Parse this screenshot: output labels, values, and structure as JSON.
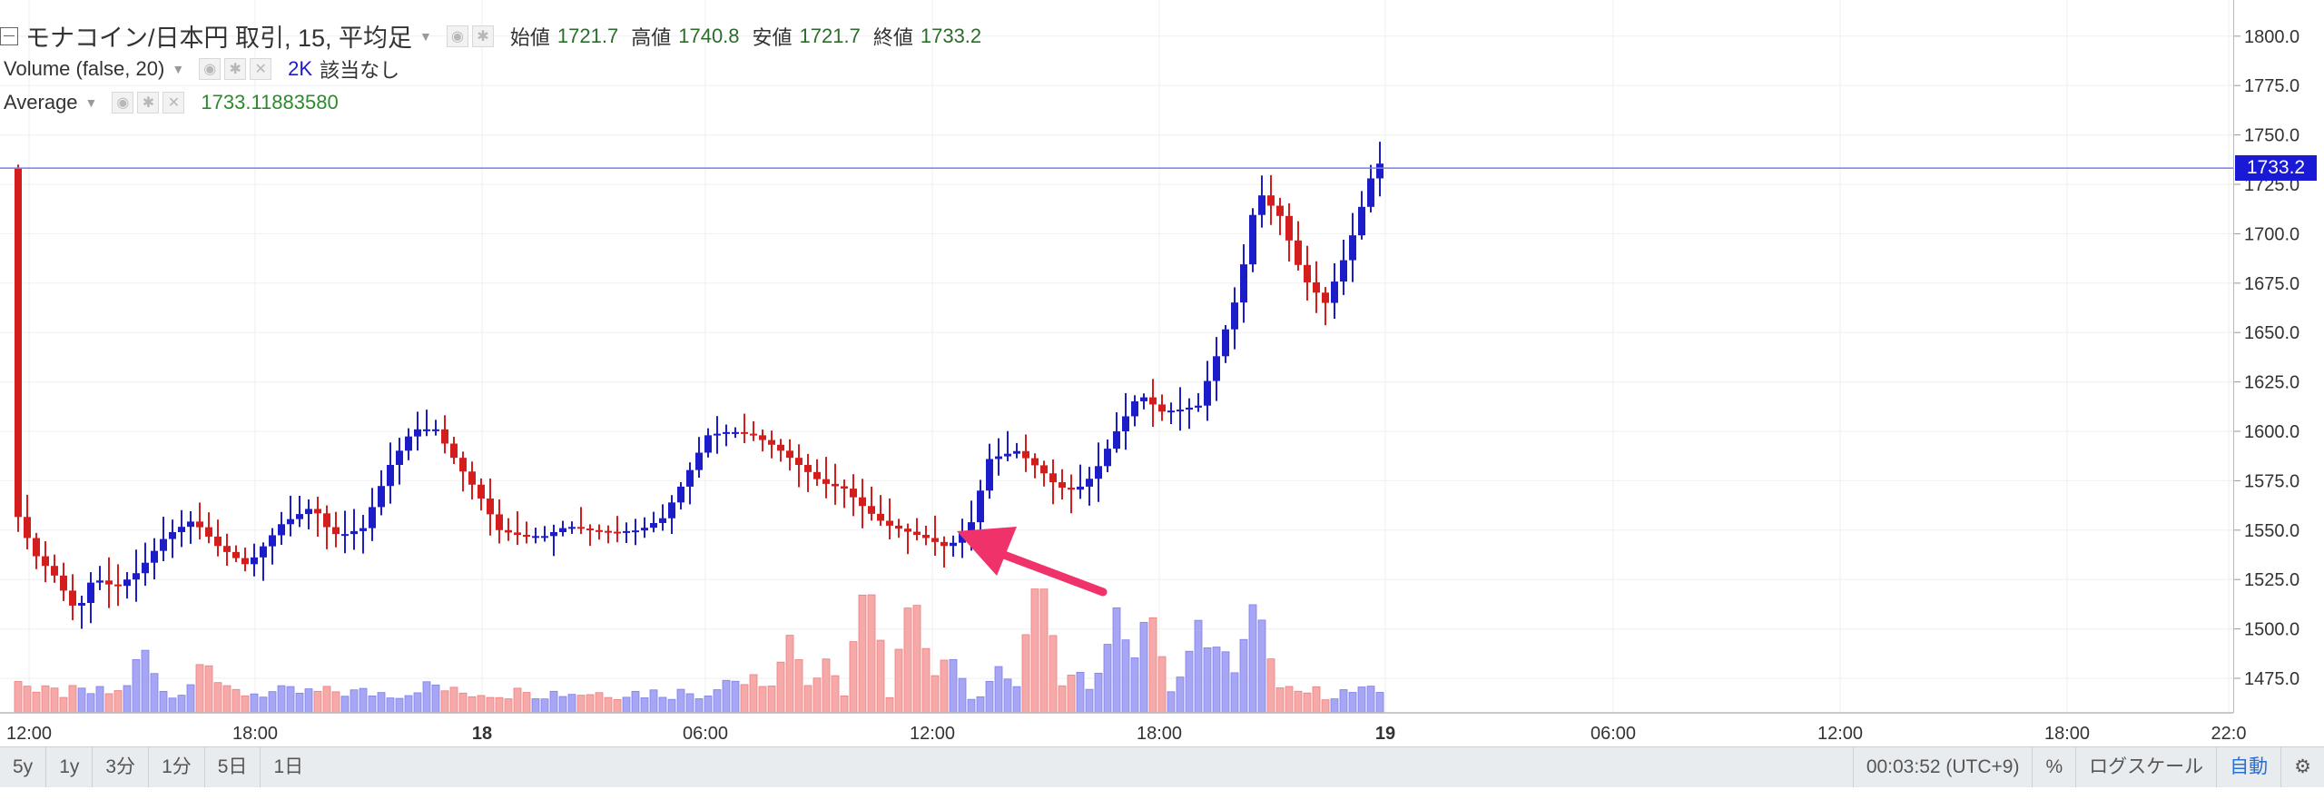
{
  "legend": {
    "symbol": "モナコイン/日本円 取引, 15, 平均足",
    "open_label": "始値",
    "open": "1721.7",
    "high_label": "高値",
    "high": "1740.8",
    "low_label": "安値",
    "low": "1721.7",
    "close_label": "終値",
    "close": "1733.2",
    "volume_name": "Volume (false, 20)",
    "volume_value": "2K",
    "volume_na": "該当なし",
    "average_name": "Average",
    "average_value": "1733.11883580"
  },
  "price_badge": "1733.2",
  "toolbar": {
    "ranges": [
      "5y",
      "1y",
      "3分",
      "1分",
      "5日",
      "1日"
    ],
    "clock": "00:03:52 (UTC+9)",
    "percent": "%",
    "log_scale": "ログスケール",
    "auto": "自動"
  },
  "colors": {
    "up": "#1c1cc8",
    "down": "#d41d1d",
    "vol_up": "#a6a6f5",
    "vol_down": "#f6a9a9",
    "arrow": "#f0326a",
    "last_price_line": "#7b7bea"
  },
  "chart_data": {
    "type": "candlestick",
    "y_ticks": [
      "1475.0",
      "1500.0",
      "1525.0",
      "1550.0",
      "1575.0",
      "1600.0",
      "1625.0",
      "1650.0",
      "1675.0",
      "1700.0",
      "1725.0",
      "1750.0",
      "1775.0",
      "1800.0"
    ],
    "x_ticks": [
      "12:00",
      "18:00",
      "18",
      "06:00",
      "12:00",
      "18:00",
      "19",
      "06:00",
      "12:00",
      "18:00",
      "22:0"
    ],
    "ylim": [
      1463,
      1806
    ],
    "last_price": 1733.2,
    "segments": [
      [
        0,
        1562
      ],
      [
        9,
        1538
      ],
      [
        18,
        1527
      ],
      [
        28,
        1508
      ],
      [
        35,
        1526
      ],
      [
        45,
        1521
      ],
      [
        55,
        1529
      ],
      [
        67,
        1547
      ],
      [
        79,
        1555
      ],
      [
        90,
        1542
      ],
      [
        103,
        1532
      ],
      [
        118,
        1553
      ],
      [
        132,
        1562
      ],
      [
        140,
        1548
      ],
      [
        146,
        1548
      ],
      [
        154,
        1551
      ],
      [
        166,
        1583
      ],
      [
        176,
        1601
      ],
      [
        186,
        1601
      ],
      [
        196,
        1583
      ],
      [
        205,
        1568
      ],
      [
        214,
        1550
      ],
      [
        224,
        1547
      ],
      [
        234,
        1547
      ],
      [
        244,
        1552
      ],
      [
        254,
        1550
      ],
      [
        264,
        1549
      ],
      [
        276,
        1550
      ],
      [
        286,
        1556
      ],
      [
        296,
        1576
      ],
      [
        306,
        1598
      ],
      [
        316,
        1600
      ],
      [
        326,
        1598
      ],
      [
        336,
        1592
      ],
      [
        346,
        1583
      ],
      [
        356,
        1574
      ],
      [
        366,
        1571
      ],
      [
        376,
        1560
      ],
      [
        384,
        1553
      ],
      [
        392,
        1550
      ],
      [
        402,
        1546
      ],
      [
        412,
        1541
      ],
      [
        422,
        1554
      ],
      [
        430,
        1586
      ],
      [
        442,
        1590
      ],
      [
        452,
        1581
      ],
      [
        460,
        1572
      ],
      [
        468,
        1570
      ],
      [
        476,
        1578
      ],
      [
        486,
        1600
      ],
      [
        496,
        1619
      ],
      [
        506,
        1610
      ],
      [
        514,
        1611
      ],
      [
        522,
        1613
      ],
      [
        530,
        1638
      ],
      [
        540,
        1672
      ],
      [
        548,
        1722
      ],
      [
        558,
        1709
      ],
      [
        568,
        1678
      ],
      [
        578,
        1665
      ],
      [
        588,
        1692
      ],
      [
        598,
        1728
      ],
      [
        606,
        1743
      ],
      [
        616,
        1714
      ],
      [
        624,
        1726
      ],
      [
        628,
        1733
      ]
    ],
    "volume_base": 35,
    "volume_peaks": [
      [
        0,
        30
      ],
      [
        10,
        20
      ],
      [
        40,
        10
      ],
      [
        55,
        60
      ],
      [
        82,
        50
      ],
      [
        138,
        20
      ],
      [
        162,
        10
      ],
      [
        182,
        30
      ],
      [
        188,
        18
      ],
      [
        202,
        8
      ],
      [
        222,
        20
      ],
      [
        238,
        14
      ],
      [
        252,
        16
      ],
      [
        270,
        12
      ],
      [
        296,
        8
      ],
      [
        314,
        36
      ],
      [
        324,
        34
      ],
      [
        340,
        72
      ],
      [
        356,
        46
      ],
      [
        374,
        130
      ],
      [
        394,
        120
      ],
      [
        410,
        60
      ],
      [
        432,
        40
      ],
      [
        450,
        142
      ],
      [
        466,
        40
      ],
      [
        484,
        96
      ],
      [
        498,
        104
      ],
      [
        520,
        86
      ],
      [
        530,
        70
      ],
      [
        545,
        112
      ]
    ]
  }
}
